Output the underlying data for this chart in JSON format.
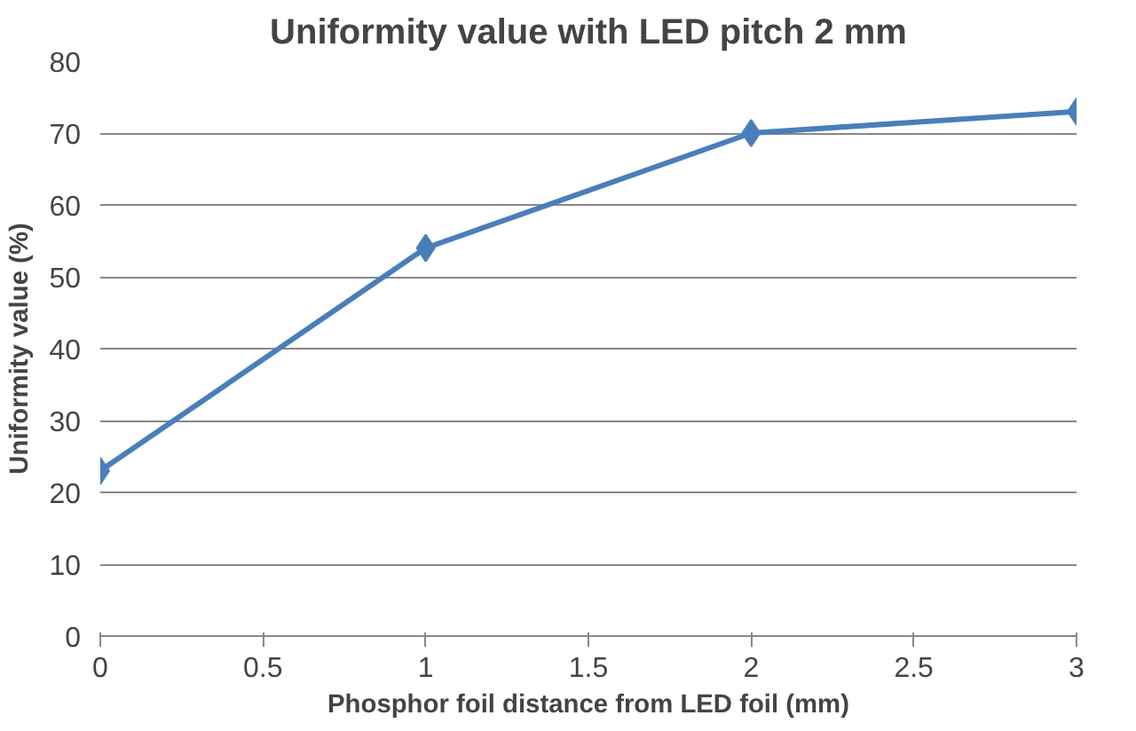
{
  "chart_data": {
    "type": "line",
    "title": "Uniformity value with LED pitch 2 mm",
    "xlabel": "Phosphor foil distance from LED foil (mm)",
    "ylabel": "Uniformity value (%)",
    "x": [
      0,
      1,
      2,
      3
    ],
    "series": [
      {
        "color": "#4a7ebb",
        "values": [
          23,
          54,
          70,
          73
        ]
      }
    ],
    "xlim": [
      0,
      3
    ],
    "xticks": [
      0,
      0.5,
      1,
      1.5,
      2,
      2.5,
      3
    ],
    "ylim": [
      0,
      80
    ],
    "yticks": [
      0,
      10,
      20,
      30,
      40,
      50,
      60,
      70,
      80
    ],
    "grid": "y",
    "marker": "diamond",
    "line_style": "solid"
  }
}
